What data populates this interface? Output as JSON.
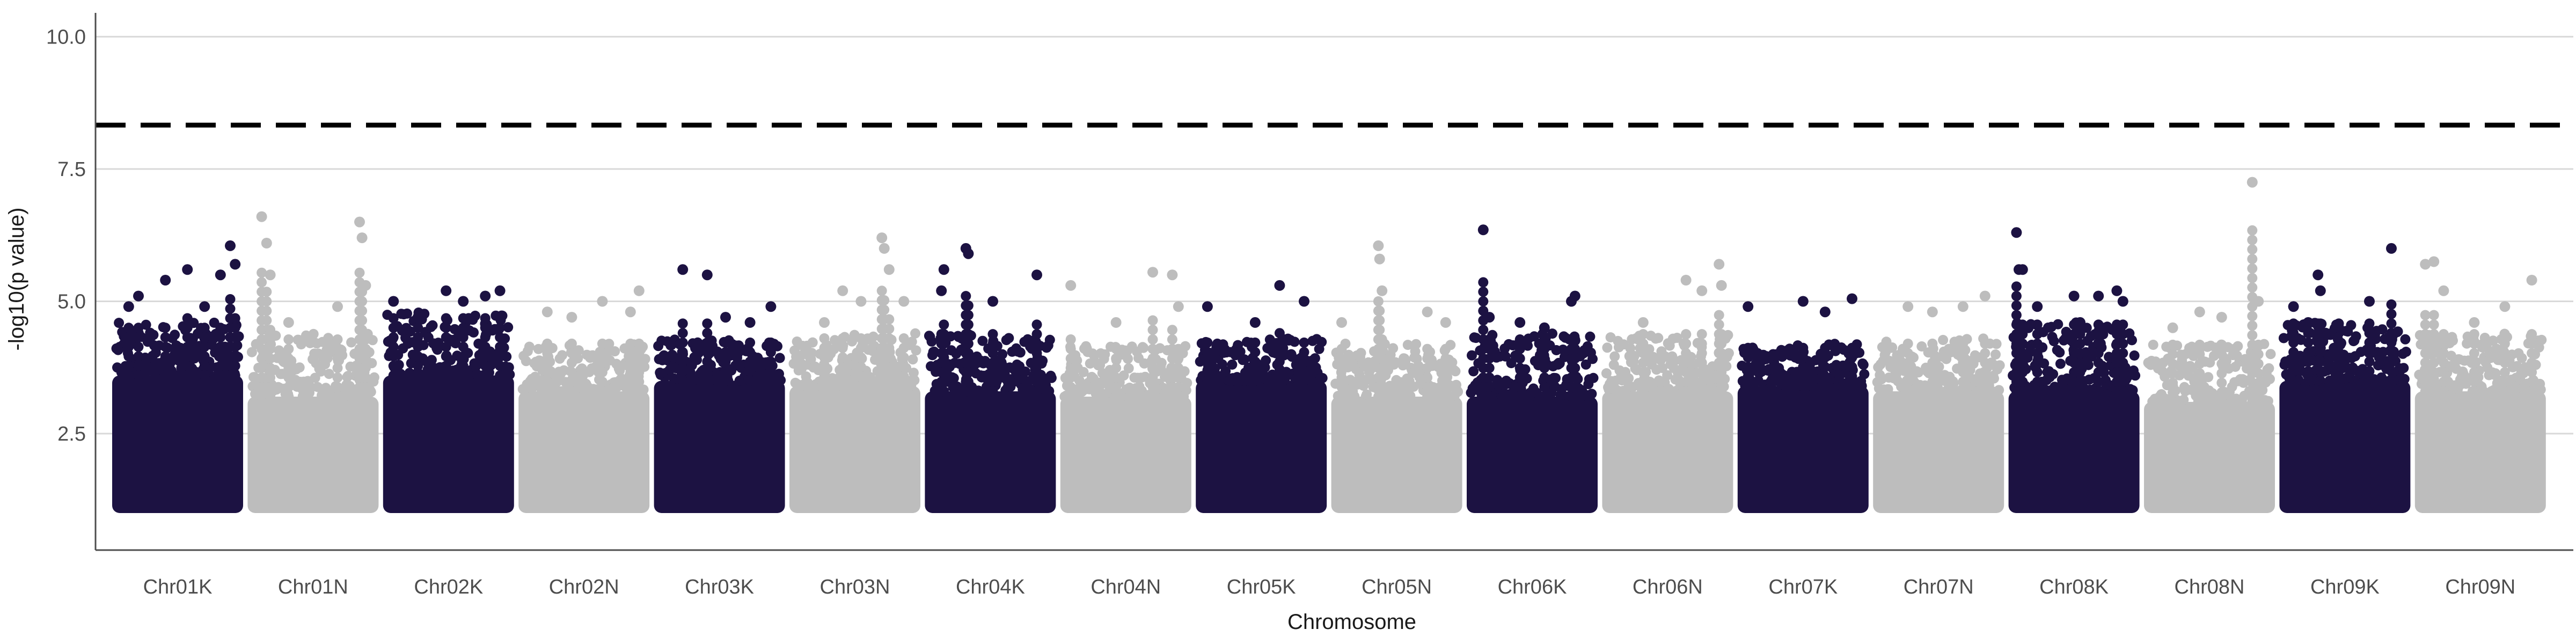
{
  "chart_data": {
    "type": "scatter",
    "title": "",
    "xlabel": "Chromosome",
    "ylabel": "-log10(p value)",
    "ylim": [
      0.3,
      10.45
    ],
    "yticks": [
      2.5,
      5.0,
      7.5,
      10.0
    ],
    "ytick_labels": [
      "2.5",
      "5.0",
      "7.5",
      "10.0"
    ],
    "grid": "horizontal major lines",
    "threshold": 8.33,
    "threshold_style": "dashed",
    "colors": {
      "dark": "#1c1242",
      "light": "#bdbdbd",
      "threshold": "#000000",
      "grid": "#d9d9d9",
      "axis": "#4d4d4d"
    },
    "marker_min": 1.0,
    "chromosomes": [
      {
        "name": "Chr01K",
        "color": "dark",
        "max": 6.05,
        "upper_band": [
          3.6,
          4.6
        ],
        "peaks": [
          [
            0.1,
            4.9
          ],
          [
            0.18,
            5.1
          ],
          [
            0.4,
            5.4
          ],
          [
            0.58,
            5.6
          ],
          [
            0.72,
            4.9
          ],
          [
            0.85,
            5.5
          ],
          [
            0.93,
            6.05
          ],
          [
            0.97,
            5.7
          ]
        ]
      },
      {
        "name": "Chr01N",
        "color": "light",
        "max": 6.6,
        "upper_band": [
          3.2,
          4.4
        ],
        "peaks": [
          [
            0.08,
            6.6
          ],
          [
            0.12,
            6.1
          ],
          [
            0.15,
            5.5
          ],
          [
            0.3,
            4.6
          ],
          [
            0.7,
            4.9
          ],
          [
            0.88,
            6.5
          ],
          [
            0.9,
            6.2
          ],
          [
            0.93,
            5.3
          ]
        ]
      },
      {
        "name": "Chr02K",
        "color": "dark",
        "max": 5.2,
        "upper_band": [
          3.6,
          4.8
        ],
        "peaks": [
          [
            0.05,
            5.0
          ],
          [
            0.25,
            4.7
          ],
          [
            0.48,
            5.2
          ],
          [
            0.62,
            5.0
          ],
          [
            0.8,
            5.1
          ],
          [
            0.92,
            5.2
          ]
        ]
      },
      {
        "name": "Chr02N",
        "color": "light",
        "max": 5.2,
        "upper_band": [
          3.3,
          4.2
        ],
        "peaks": [
          [
            0.2,
            4.8
          ],
          [
            0.4,
            4.7
          ],
          [
            0.65,
            5.0
          ],
          [
            0.88,
            4.8
          ],
          [
            0.95,
            5.2
          ]
        ]
      },
      {
        "name": "Chr03K",
        "color": "dark",
        "max": 5.6,
        "upper_band": [
          3.5,
          4.3
        ],
        "peaks": [
          [
            0.2,
            5.6
          ],
          [
            0.4,
            5.5
          ],
          [
            0.55,
            4.7
          ],
          [
            0.75,
            4.6
          ],
          [
            0.92,
            4.9
          ]
        ]
      },
      {
        "name": "Chr03N",
        "color": "light",
        "max": 6.2,
        "upper_band": [
          3.4,
          4.4
        ],
        "peaks": [
          [
            0.25,
            4.6
          ],
          [
            0.4,
            5.2
          ],
          [
            0.55,
            5.0
          ],
          [
            0.72,
            6.2
          ],
          [
            0.74,
            6.0
          ],
          [
            0.78,
            5.6
          ],
          [
            0.9,
            5.0
          ]
        ]
      },
      {
        "name": "Chr04K",
        "color": "dark",
        "max": 6.0,
        "upper_band": [
          3.3,
          4.4
        ],
        "peaks": [
          [
            0.1,
            5.2
          ],
          [
            0.12,
            5.6
          ],
          [
            0.3,
            6.0
          ],
          [
            0.32,
            5.9
          ],
          [
            0.52,
            5.0
          ],
          [
            0.88,
            5.5
          ]
        ]
      },
      {
        "name": "Chr04N",
        "color": "light",
        "max": 5.55,
        "upper_band": [
          3.2,
          4.2
        ],
        "peaks": [
          [
            0.05,
            5.3
          ],
          [
            0.42,
            4.6
          ],
          [
            0.72,
            5.55
          ],
          [
            0.88,
            5.5
          ],
          [
            0.93,
            4.9
          ]
        ]
      },
      {
        "name": "Chr05K",
        "color": "dark",
        "max": 5.3,
        "upper_band": [
          3.5,
          4.3
        ],
        "peaks": [
          [
            0.06,
            4.9
          ],
          [
            0.45,
            4.6
          ],
          [
            0.65,
            5.3
          ],
          [
            0.85,
            5.0
          ]
        ]
      },
      {
        "name": "Chr05N",
        "color": "light",
        "max": 6.05,
        "upper_band": [
          3.2,
          4.2
        ],
        "peaks": [
          [
            0.05,
            4.6
          ],
          [
            0.35,
            6.05
          ],
          [
            0.36,
            5.8
          ],
          [
            0.38,
            5.2
          ],
          [
            0.75,
            4.8
          ],
          [
            0.9,
            4.6
          ]
        ]
      },
      {
        "name": "Chr06K",
        "color": "dark",
        "max": 6.35,
        "upper_band": [
          3.2,
          4.4
        ],
        "peaks": [
          [
            0.1,
            6.35
          ],
          [
            0.15,
            4.7
          ],
          [
            0.4,
            4.6
          ],
          [
            0.6,
            4.5
          ],
          [
            0.82,
            5.0
          ],
          [
            0.85,
            5.1
          ]
        ]
      },
      {
        "name": "Chr06N",
        "color": "light",
        "max": 5.7,
        "upper_band": [
          3.3,
          4.4
        ],
        "peaks": [
          [
            0.3,
            4.6
          ],
          [
            0.65,
            5.4
          ],
          [
            0.78,
            5.2
          ],
          [
            0.92,
            5.7
          ],
          [
            0.94,
            5.3
          ]
        ]
      },
      {
        "name": "Chr07K",
        "color": "dark",
        "max": 5.05,
        "upper_band": [
          3.4,
          4.2
        ],
        "peaks": [
          [
            0.05,
            4.9
          ],
          [
            0.5,
            5.0
          ],
          [
            0.68,
            4.8
          ],
          [
            0.9,
            5.05
          ]
        ]
      },
      {
        "name": "Chr07N",
        "color": "light",
        "max": 5.1,
        "upper_band": [
          3.3,
          4.3
        ],
        "peaks": [
          [
            0.25,
            4.9
          ],
          [
            0.45,
            4.8
          ],
          [
            0.7,
            4.9
          ],
          [
            0.88,
            5.1
          ]
        ]
      },
      {
        "name": "Chr08K",
        "color": "dark",
        "max": 6.3,
        "upper_band": [
          3.3,
          4.6
        ],
        "peaks": [
          [
            0.03,
            6.3
          ],
          [
            0.05,
            5.6
          ],
          [
            0.08,
            5.6
          ],
          [
            0.2,
            4.9
          ],
          [
            0.5,
            5.1
          ],
          [
            0.55,
            4.6
          ],
          [
            0.7,
            5.1
          ],
          [
            0.85,
            5.2
          ],
          [
            0.9,
            5.0
          ]
        ]
      },
      {
        "name": "Chr08N",
        "color": "light",
        "max": 7.25,
        "upper_band": [
          3.1,
          4.2
        ],
        "peaks": [
          [
            0.2,
            4.5
          ],
          [
            0.42,
            4.8
          ],
          [
            0.6,
            4.7
          ],
          [
            0.85,
            7.25
          ],
          [
            0.9,
            5.0
          ]
        ]
      },
      {
        "name": "Chr09K",
        "color": "dark",
        "max": 6.0,
        "upper_band": [
          3.5,
          4.6
        ],
        "peaks": [
          [
            0.08,
            4.9
          ],
          [
            0.2,
            4.6
          ],
          [
            0.28,
            5.5
          ],
          [
            0.3,
            5.2
          ],
          [
            0.45,
            4.5
          ],
          [
            0.7,
            5.0
          ],
          [
            0.88,
            6.0
          ]
        ]
      },
      {
        "name": "Chr09N",
        "color": "light",
        "max": 5.75,
        "upper_band": [
          3.3,
          4.4
        ],
        "peaks": [
          [
            0.05,
            5.7
          ],
          [
            0.12,
            5.75
          ],
          [
            0.2,
            5.2
          ],
          [
            0.45,
            4.6
          ],
          [
            0.7,
            4.9
          ],
          [
            0.92,
            5.4
          ]
        ]
      }
    ]
  }
}
